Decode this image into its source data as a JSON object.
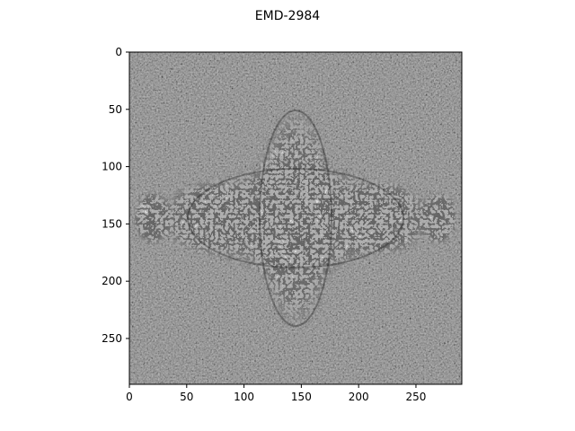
{
  "chart_data": {
    "type": "heatmap",
    "title": "EMD-2984",
    "xlabel": "",
    "ylabel": "",
    "xlim": [
      0,
      290
    ],
    "ylim": [
      290,
      0
    ],
    "x_ticks": [
      0,
      50,
      100,
      150,
      200,
      250
    ],
    "y_ticks": [
      0,
      50,
      100,
      150,
      200,
      250
    ],
    "colormap": "gray",
    "grid": false,
    "legend": "none"
  }
}
